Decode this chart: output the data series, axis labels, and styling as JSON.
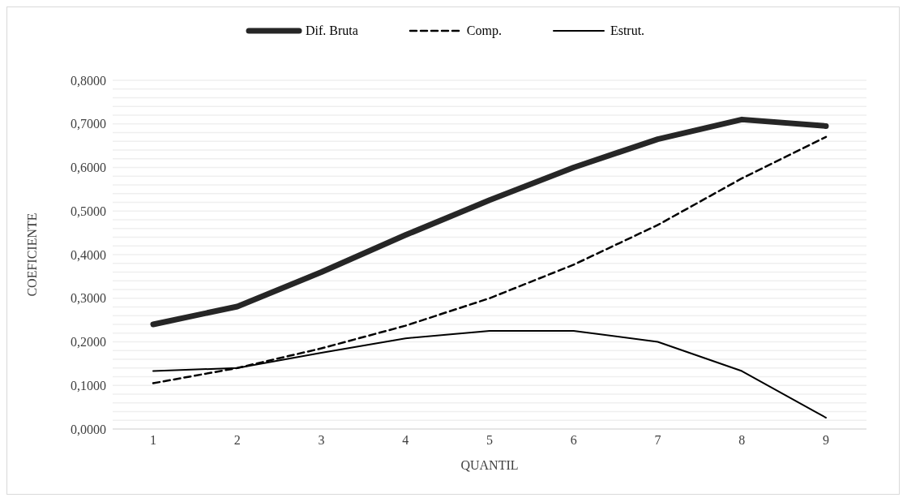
{
  "chart_data": {
    "type": "line",
    "xlabel": "QUANTIL",
    "ylabel": "COEFICIENTE",
    "categories": [
      "1",
      "2",
      "3",
      "4",
      "5",
      "6",
      "7",
      "8",
      "9"
    ],
    "series": [
      {
        "name": "Dif. Bruta",
        "color": "#262626",
        "line_style": "solid",
        "values": [
          0.24,
          0.281,
          0.36,
          0.445,
          0.525,
          0.6,
          0.665,
          0.71,
          0.695
        ]
      },
      {
        "name": "Comp.",
        "color": "#000000",
        "line_style": "dashed",
        "values": [
          0.105,
          0.14,
          0.185,
          0.237,
          0.3,
          0.377,
          0.468,
          0.575,
          0.67
        ]
      },
      {
        "name": "Estrut.",
        "color": "#000000",
        "line_style": "solid",
        "values": [
          0.133,
          0.14,
          0.175,
          0.208,
          0.225,
          0.225,
          0.2,
          0.133,
          0.026
        ]
      }
    ],
    "ylim": [
      0,
      0.8
    ],
    "yticks": [
      "0,0000",
      {
        "value": 0.02,
        "label": null
      },
      {
        "value": 0.04,
        "label": null
      },
      {
        "value": 0.06,
        "label": null
      },
      {
        "value": 0.08,
        "label": null
      },
      {
        "value": 0.1,
        "label": "0,1000"
      },
      {
        "value": 0.12,
        "label": null
      },
      {
        "value": 0.14,
        "label": null
      },
      {
        "value": 0.16,
        "label": null
      },
      {
        "value": 0.18,
        "label": null
      },
      {
        "value": 0.2,
        "label": "0,2000"
      },
      {
        "value": 0.22,
        "label": null
      },
      {
        "value": 0.24,
        "label": null
      },
      {
        "value": 0.26,
        "label": null
      },
      {
        "value": 0.28,
        "label": null
      },
      {
        "value": 0.3,
        "label": "0,3000"
      },
      {
        "value": 0.32,
        "label": null
      },
      {
        "value": 0.34,
        "label": null
      },
      {
        "value": 0.36,
        "label": null
      },
      {
        "value": 0.38,
        "label": null
      },
      {
        "value": 0.4,
        "label": "0,4000"
      },
      {
        "value": 0.42,
        "label": null
      },
      {
        "value": 0.44,
        "label": null
      },
      {
        "value": 0.46,
        "label": null
      },
      {
        "value": 0.48,
        "label": null
      },
      {
        "value": 0.5,
        "label": "0,5000"
      },
      {
        "value": 0.52,
        "label": null
      },
      {
        "value": 0.54,
        "label": null
      },
      {
        "value": 0.56,
        "label": null
      },
      {
        "value": 0.58,
        "label": null
      },
      {
        "value": 0.6,
        "label": "0,6000"
      },
      {
        "value": 0.62,
        "label": null
      },
      {
        "value": 0.64,
        "label": null
      },
      {
        "value": 0.66,
        "label": null
      },
      {
        "value": 0.68,
        "label": null
      },
      {
        "value": 0.7,
        "label": "0,7000"
      },
      {
        "value": 0.72,
        "label": null
      },
      {
        "value": 0.74,
        "label": null
      },
      {
        "value": 0.76,
        "label": null
      },
      {
        "value": 0.78,
        "label": null
      },
      {
        "value": 0.8,
        "label": "0,8000"
      }
    ],
    "grid": "y",
    "legend": "top",
    "marker": "none"
  }
}
